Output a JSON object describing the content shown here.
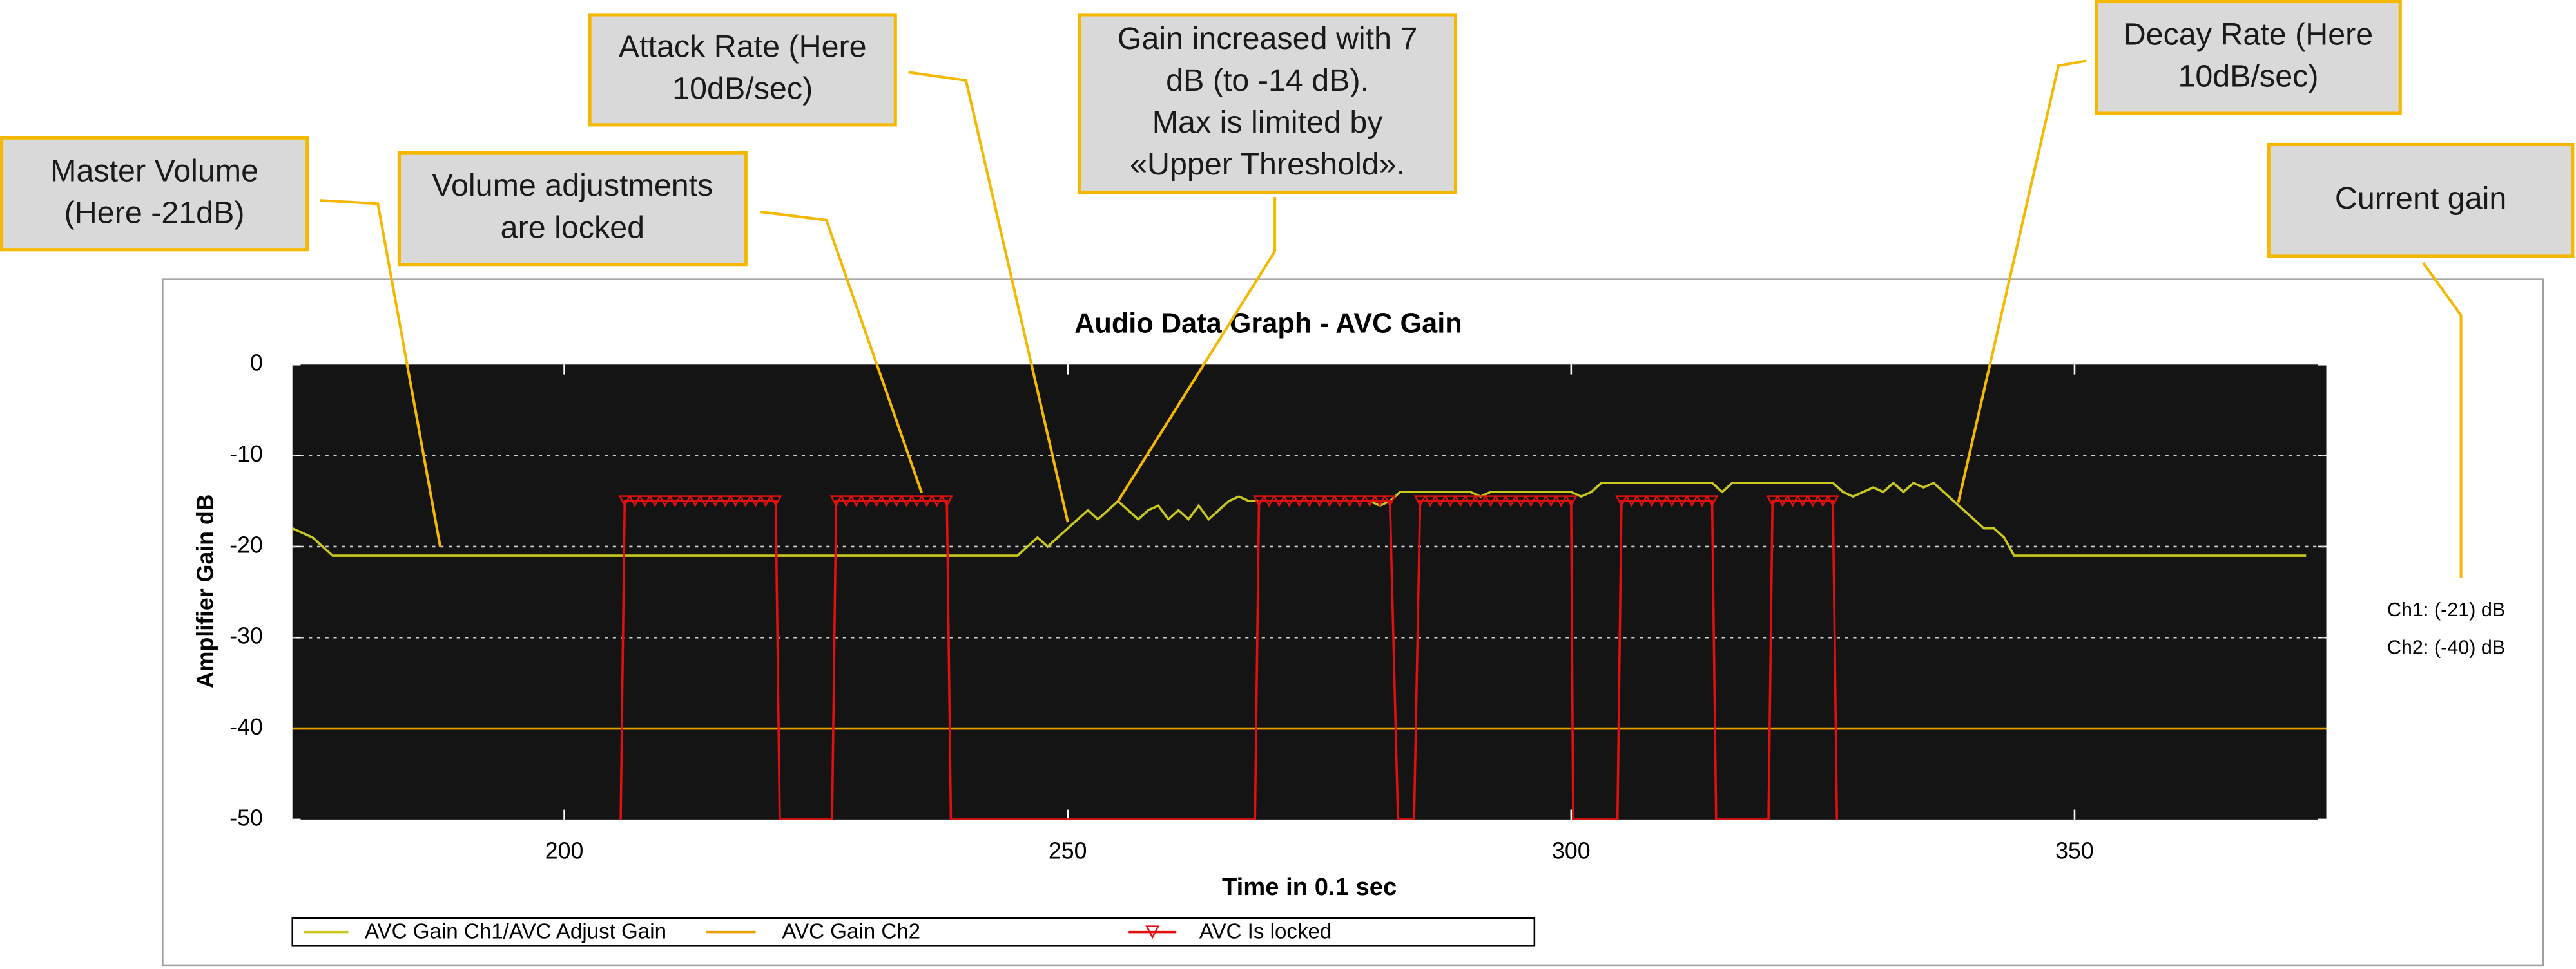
{
  "chart_data": {
    "type": "line",
    "title": "Audio Data Graph - AVC Gain",
    "x_label": "Time in 0.1 sec",
    "y_label": "Amplifier Gain dB",
    "xlim": [
      173,
      375
    ],
    "ylim": [
      -50,
      0
    ],
    "xticks": [
      200,
      250,
      300,
      350
    ],
    "yticks": [
      0,
      -10,
      -20,
      -30,
      -40,
      -50
    ],
    "grid": true,
    "legend": "bottom",
    "series": [
      {
        "name": "AVC Gain Ch1/AVC Adjust Gain",
        "color": "#c8c81e",
        "x": [
          173,
          175,
          177,
          245,
          246,
          247,
          248,
          249,
          250,
          251,
          252,
          253,
          254,
          255,
          256,
          257,
          258,
          259,
          260,
          261,
          262,
          263,
          264,
          265,
          266,
          267,
          268,
          280,
          281,
          282,
          283,
          290,
          291,
          292,
          300,
          301,
          302,
          303,
          314,
          315,
          316,
          326,
          327,
          328,
          329,
          330,
          331,
          332,
          333,
          334,
          335,
          336,
          337,
          338,
          339,
          340,
          341,
          342,
          343,
          344,
          373
        ],
        "values": [
          -18,
          -19,
          -21,
          -21,
          -20,
          -19,
          -20,
          -19,
          -18,
          -17,
          -16,
          -17,
          -16,
          -15,
          -16,
          -17,
          -16,
          -15.5,
          -17,
          -16,
          -17,
          -15.5,
          -17,
          -16,
          -15,
          -14.5,
          -15,
          -15,
          -15.5,
          -15,
          -14,
          -14,
          -14.5,
          -14,
          -14,
          -14.5,
          -14,
          -13,
          -13,
          -14,
          -13,
          -13,
          -14,
          -14.5,
          -14,
          -13.5,
          -14,
          -13,
          -14,
          -13,
          -13.5,
          -13,
          -14,
          -15,
          -16,
          -17,
          -18,
          -18,
          -19,
          -21,
          -21
        ]
      },
      {
        "name": "AVC Gain Ch2",
        "color": "#e8a000",
        "x": [
          173,
          375
        ],
        "values": [
          -40,
          -40
        ]
      },
      {
        "name": "AVC Is locked",
        "color": "#e01010",
        "marker": "triangle-down",
        "x": [
          205.6,
          206,
          207,
          208,
          209,
          210,
          211,
          212,
          213,
          214,
          215,
          216,
          217,
          218,
          219,
          220,
          221,
          221.4,
          226.6,
          227,
          228,
          229,
          230,
          231,
          232,
          233,
          234,
          235,
          236,
          237,
          238,
          238.4,
          268.6,
          269,
          270,
          271,
          272,
          273,
          274,
          275,
          276,
          277,
          278,
          279,
          280,
          281,
          282,
          282.8,
          284.4,
          285,
          286,
          287,
          288,
          289,
          290,
          291,
          292,
          293,
          294,
          295,
          296,
          297,
          298,
          299,
          300,
          300.2,
          304.6,
          305,
          306,
          307,
          308,
          309,
          310,
          311,
          312,
          313,
          314,
          314.4,
          319.6,
          320,
          321,
          322,
          323,
          324,
          325,
          326,
          326.4
        ],
        "values": [
          -50,
          -15,
          -15,
          -15,
          -15,
          -15,
          -15,
          -15,
          -15,
          -15,
          -15,
          -15,
          -15,
          -15,
          -15,
          -15,
          -15,
          -50,
          -50,
          -15,
          -15,
          -15,
          -15,
          -15,
          -15,
          -15,
          -15,
          -15,
          -15,
          -15,
          -15,
          -50,
          -50,
          -15,
          -15,
          -15,
          -15,
          -15,
          -15,
          -15,
          -15,
          -15,
          -15,
          -15,
          -15,
          -15,
          -15,
          -50,
          -50,
          -15,
          -15,
          -15,
          -15,
          -15,
          -15,
          -15,
          -15,
          -15,
          -15,
          -15,
          -15,
          -15,
          -15,
          -15,
          -15,
          -50,
          -50,
          -15,
          -15,
          -15,
          -15,
          -15,
          -15,
          -15,
          -15,
          -15,
          -15,
          -50,
          -50,
          -15,
          -15,
          -15,
          -15,
          -15,
          -15,
          -15,
          -50
        ]
      }
    ],
    "readouts": [
      "Ch1: (-21) dB",
      "Ch2: (-40) dB"
    ],
    "annotations": [
      {
        "lines": [
          "Master Volume",
          "(Here -21dB)"
        ]
      },
      {
        "lines": [
          "Volume adjustments",
          "are locked"
        ]
      },
      {
        "lines": [
          "Attack Rate (Here",
          "10dB/sec)"
        ]
      },
      {
        "lines": [
          "Gain increased with 7",
          "dB (to -14 dB).",
          "Max is limited by",
          "«Upper Threshold»."
        ]
      },
      {
        "lines": [
          "Decay Rate (Here",
          "10dB/sec)"
        ]
      },
      {
        "lines": [
          "Current gain"
        ]
      }
    ]
  }
}
